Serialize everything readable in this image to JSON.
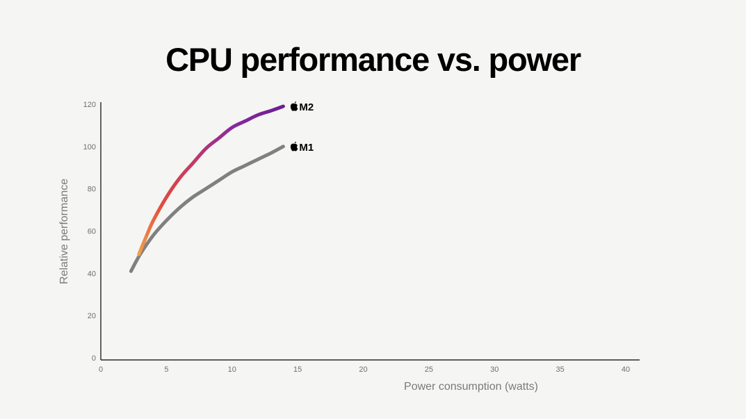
{
  "chart_data": {
    "type": "line",
    "title": "CPU performance vs. power",
    "xlabel": "Power consumption (watts)",
    "ylabel": "Relative performance",
    "xlim": [
      0,
      40
    ],
    "ylim": [
      0,
      120
    ],
    "xticks": [
      0,
      5,
      10,
      15,
      20,
      25,
      30,
      35,
      40
    ],
    "yticks": [
      0,
      20,
      40,
      60,
      80,
      100,
      120
    ],
    "grid": false,
    "series": [
      {
        "name": "M1",
        "color": "#808080",
        "label_icon": "apple-logo-icon",
        "x": [
          2.3,
          3.0,
          4.0,
          5.0,
          6.0,
          7.0,
          8.0,
          9.0,
          10.0,
          11.0,
          12.0,
          13.0,
          13.9
        ],
        "y": [
          41,
          49,
          58,
          65,
          71,
          76,
          80,
          84,
          88,
          91,
          94,
          97,
          100
        ]
      },
      {
        "name": "M2",
        "gradient": [
          "#f2a04a",
          "#e04a3d",
          "#c23a6a",
          "#8a2a9c",
          "#6a1f94"
        ],
        "label_icon": "apple-logo-icon",
        "x": [
          2.9,
          3.5,
          4.0,
          5.0,
          6.0,
          7.0,
          8.0,
          9.0,
          10.0,
          11.0,
          12.0,
          13.0,
          13.9
        ],
        "y": [
          49,
          58,
          65,
          76,
          85,
          92,
          99,
          104,
          109,
          112,
          115,
          117,
          119
        ]
      }
    ]
  }
}
